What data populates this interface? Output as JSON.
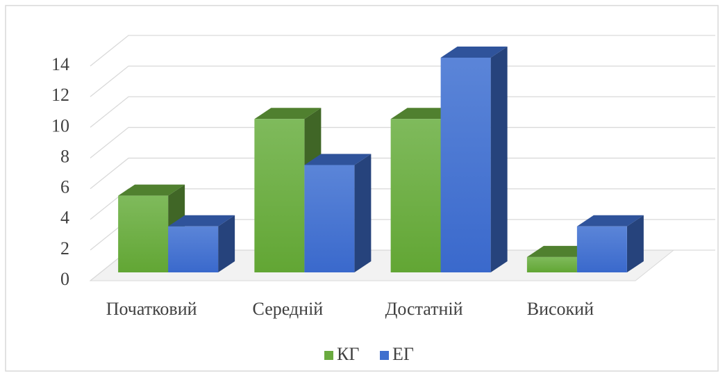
{
  "chart_data": {
    "type": "bar3d",
    "categories": [
      "Початковий",
      "Середній",
      "Достатній",
      "Високий"
    ],
    "series": [
      {
        "name": "КГ",
        "color": "#6aaa3f",
        "values": [
          5,
          10,
          10,
          1
        ]
      },
      {
        "name": "ЕГ",
        "color": "#3f6fce",
        "values": [
          3,
          7,
          14,
          3
        ]
      }
    ],
    "ylim": [
      0,
      14
    ],
    "yticks": [
      0,
      2,
      4,
      6,
      8,
      10,
      12,
      14
    ],
    "grid": true,
    "legend": "bottom"
  }
}
